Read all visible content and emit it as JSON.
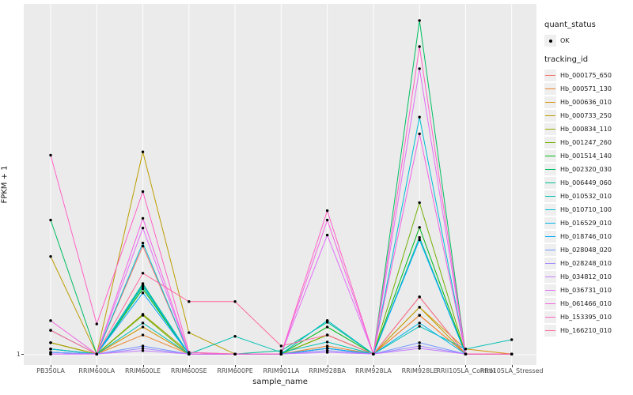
{
  "figure": {
    "background": "#FFFFFF",
    "panel_background": "#EBEBEB",
    "gridline_color": "#FFFFFF",
    "point_color": "#000000"
  },
  "legend": {
    "quant_status_title": "quant_status",
    "quant_status_items": [
      {
        "label": "OK",
        "marker": "black-point"
      }
    ],
    "tracking_id_title": "tracking_id",
    "key_background": "#EFEFEF"
  },
  "chart_data": {
    "type": "line",
    "title": "",
    "xlabel": "sample_name",
    "ylabel": "FPKM + 1",
    "y_axis": {
      "scale": "log-like, only labelled tick is 1 at baseline",
      "tick_labels": [
        "1"
      ]
    },
    "categories": [
      "PB350LA",
      "RRIM600LA",
      "RRIM600LE",
      "RRIM600SE",
      "RRIM600PE",
      "RRIM901LA",
      "RRIM928BA",
      "RRIM928LA",
      "RRIM928LE",
      "RRII105LA_Control",
      "RRII105LA_Stressed"
    ],
    "value_encoding": "normalized plot height: 0 = baseline at y tick '1', 1 = tallest peak (Hb_002320_030 at RRIM928LE)",
    "marker": {
      "shape": "point",
      "color": "#000000"
    },
    "legend_position": "right",
    "grid": "vertical white line per category on gray panel, white baseline at y=1",
    "series": [
      {
        "name": "Hb_000175_650",
        "color": "#F8766D",
        "values": [
          0.017,
          0.002,
          0.325,
          0.002,
          0.002,
          0.002,
          0.019,
          0.002,
          0.118,
          0.002,
          0.002
        ]
      },
      {
        "name": "Hb_000571_130",
        "color": "#E9842C",
        "values": [
          0.036,
          0.002,
          0.059,
          0.002,
          0.002,
          0.002,
          0.026,
          0.002,
          0.118,
          0.002,
          0.002
        ]
      },
      {
        "name": "Hb_000636_010",
        "color": "#D69100",
        "values": [
          0.036,
          0.002,
          0.083,
          0.002,
          0.002,
          0.002,
          0.019,
          0.002,
          0.142,
          0.017,
          0.002
        ]
      },
      {
        "name": "Hb_000733_250",
        "color": "#BC9D00",
        "values": [
          0.294,
          0.002,
          0.607,
          0.066,
          0.002,
          0.002,
          0.059,
          0.002,
          0.142,
          0.002,
          0.002
        ]
      },
      {
        "name": "Hb_000834_110",
        "color": "#9CA700",
        "values": [
          0.036,
          0.002,
          0.121,
          0.007,
          0.002,
          0.002,
          0.059,
          0.002,
          0.173,
          0.002,
          0.002
        ]
      },
      {
        "name": "Hb_001247_260",
        "color": "#6FB000",
        "values": [
          0.017,
          0.002,
          0.118,
          0.002,
          0.002,
          0.002,
          0.059,
          0.002,
          0.455,
          0.002,
          0.002
        ]
      },
      {
        "name": "Hb_001514_140",
        "color": "#00B813",
        "values": [
          0.017,
          0.002,
          0.197,
          0.002,
          0.002,
          0.002,
          0.083,
          0.002,
          0.381,
          0.002,
          0.002
        ]
      },
      {
        "name": "Hb_002320_030",
        "color": "#00BD61",
        "values": [
          0.403,
          0.002,
          0.213,
          0.002,
          0.002,
          0.002,
          0.102,
          0.002,
          1.0,
          0.002,
          0.002
        ]
      },
      {
        "name": "Hb_006449_060",
        "color": "#00C08E",
        "values": [
          0.073,
          0.002,
          0.204,
          0.002,
          0.002,
          0.012,
          0.097,
          0.002,
          0.351,
          0.002,
          0.002
        ]
      },
      {
        "name": "Hb_010532_010",
        "color": "#00C0B4",
        "values": [
          0.017,
          0.002,
          0.095,
          0.002,
          0.055,
          0.007,
          0.038,
          0.002,
          0.085,
          0.017,
          0.045
        ]
      },
      {
        "name": "Hb_010710_100",
        "color": "#00BDD4",
        "values": [
          0.017,
          0.002,
          0.334,
          0.002,
          0.002,
          0.002,
          0.102,
          0.002,
          0.711,
          0.002,
          0.002
        ]
      },
      {
        "name": "Hb_016529_010",
        "color": "#00B5EC",
        "values": [
          0.007,
          0.002,
          0.209,
          0.002,
          0.002,
          0.002,
          0.019,
          0.002,
          0.095,
          0.002,
          0.002
        ]
      },
      {
        "name": "Hb_018746_010",
        "color": "#00A7FF",
        "values": [
          0.007,
          0.002,
          0.185,
          0.002,
          0.002,
          0.002,
          0.019,
          0.002,
          0.344,
          0.002,
          0.002
        ]
      },
      {
        "name": "Hb_028048_020",
        "color": "#7097FF",
        "values": [
          0.007,
          0.002,
          0.026,
          0.002,
          0.002,
          0.002,
          0.012,
          0.002,
          0.036,
          0.002,
          0.002
        ]
      },
      {
        "name": "Hb_028248_010",
        "color": "#A58AFF",
        "values": [
          0.002,
          0.002,
          0.019,
          0.002,
          0.002,
          0.002,
          0.012,
          0.002,
          0.026,
          0.002,
          0.002
        ]
      },
      {
        "name": "Hb_034812_010",
        "color": "#C77CFF",
        "values": [
          0.002,
          0.002,
          0.012,
          0.002,
          0.002,
          0.002,
          0.007,
          0.002,
          0.019,
          0.002,
          0.002
        ]
      },
      {
        "name": "Hb_036731_010",
        "color": "#E26EF7",
        "values": [
          0.002,
          0.002,
          0.379,
          0.002,
          0.002,
          0.002,
          0.358,
          0.002,
          0.856,
          0.002,
          0.002
        ]
      },
      {
        "name": "Hb_061466_010",
        "color": "#F263E2",
        "values": [
          0.102,
          0.002,
          0.408,
          0.002,
          0.002,
          0.002,
          0.403,
          0.002,
          0.661,
          0.002,
          0.002
        ]
      },
      {
        "name": "Hb_153395_010",
        "color": "#FF61C7",
        "values": [
          0.597,
          0.092,
          0.488,
          0.007,
          0.002,
          0.002,
          0.431,
          0.002,
          0.922,
          0.002,
          0.002
        ]
      },
      {
        "name": "Hb_166210_010",
        "color": "#FF689E",
        "values": [
          0.073,
          0.002,
          0.244,
          0.159,
          0.159,
          0.026,
          0.059,
          0.002,
          0.173,
          0.002,
          0.002
        ]
      }
    ]
  }
}
